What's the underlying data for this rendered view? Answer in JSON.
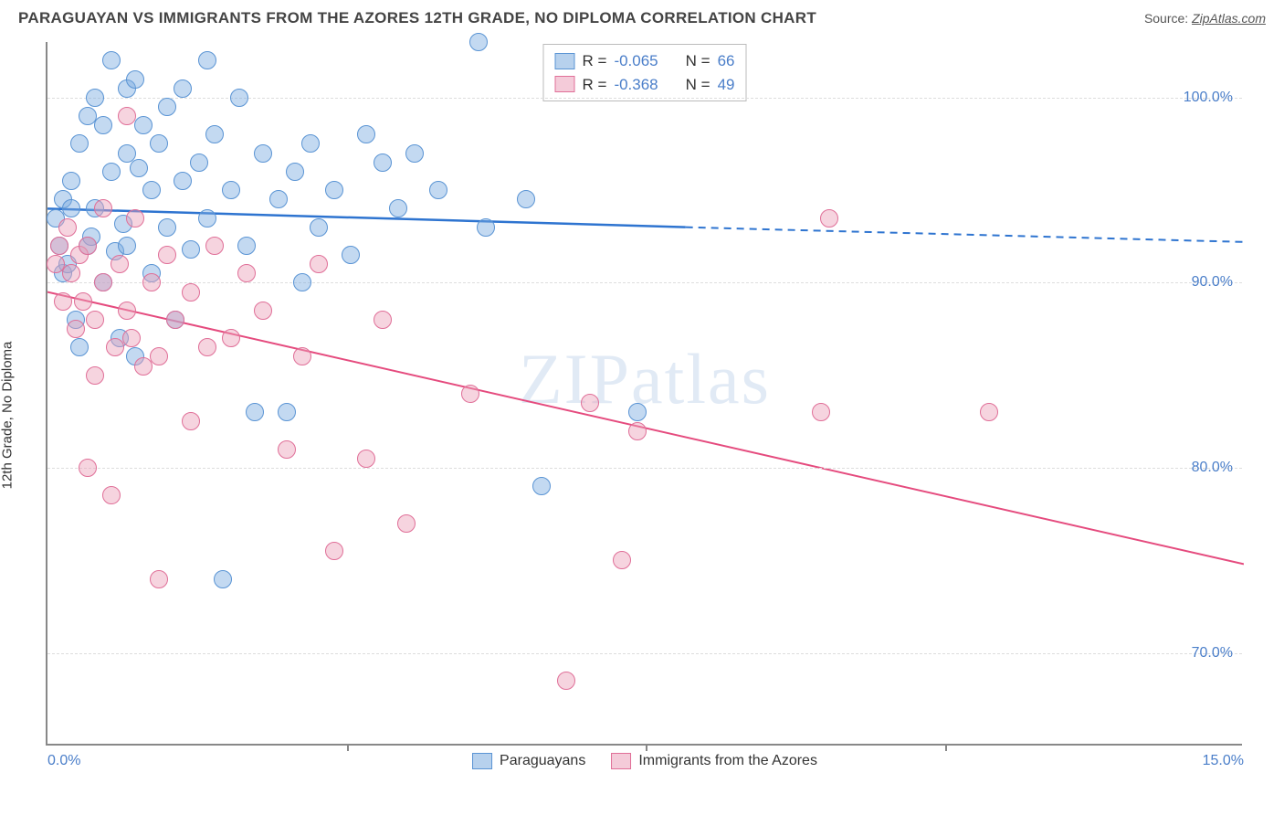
{
  "header": {
    "title": "PARAGUAYAN VS IMMIGRANTS FROM THE AZORES 12TH GRADE, NO DIPLOMA CORRELATION CHART",
    "source_prefix": "Source: ",
    "source_link": "ZipAtlas.com"
  },
  "ylabel": "12th Grade, No Diploma",
  "watermark": "ZIPatlas",
  "chart": {
    "type": "scatter",
    "xlim": [
      0,
      15
    ],
    "ylim": [
      65,
      103
    ],
    "xtick_major": [
      0,
      15
    ],
    "xtick_minor": [
      3.75,
      7.5,
      11.25
    ],
    "xtick_labels": [
      "0.0%",
      "15.0%"
    ],
    "yticks": [
      70,
      80,
      90,
      100
    ],
    "ytick_labels": [
      "70.0%",
      "80.0%",
      "90.0%",
      "100.0%"
    ],
    "grid_color": "#dddddd",
    "axis_color": "#888888",
    "background_color": "#ffffff",
    "tick_label_color": "#4a7ec9",
    "tick_fontsize": 16,
    "series": [
      {
        "name": "Paraguayans",
        "color_fill": "rgba(123,171,223,0.45)",
        "color_stroke": "#5a94d4",
        "marker_size": 20,
        "R": "-0.065",
        "N": "66",
        "trend": {
          "x1": 0,
          "y1": 94.0,
          "x2": 8.0,
          "y2": 93.0,
          "x2_dash": 15,
          "y2_dash": 92.2,
          "color": "#2e74d0",
          "width": 2.5
        },
        "points": [
          [
            0.1,
            93.5
          ],
          [
            0.15,
            92.0
          ],
          [
            0.2,
            90.5
          ],
          [
            0.2,
            94.5
          ],
          [
            0.25,
            91.0
          ],
          [
            0.3,
            94.0
          ],
          [
            0.3,
            95.5
          ],
          [
            0.35,
            88.0
          ],
          [
            0.4,
            86.5
          ],
          [
            0.4,
            97.5
          ],
          [
            0.5,
            92.0
          ],
          [
            0.5,
            99.0
          ],
          [
            0.55,
            92.5
          ],
          [
            0.6,
            100.0
          ],
          [
            0.6,
            94.0
          ],
          [
            0.7,
            90.0
          ],
          [
            0.7,
            98.5
          ],
          [
            0.8,
            102.0
          ],
          [
            0.8,
            96.0
          ],
          [
            0.85,
            91.7
          ],
          [
            0.9,
            87.0
          ],
          [
            1.0,
            100.5
          ],
          [
            1.0,
            97.0
          ],
          [
            1.0,
            92.0
          ],
          [
            1.1,
            86.0
          ],
          [
            1.1,
            101.0
          ],
          [
            1.2,
            98.5
          ],
          [
            1.3,
            95.0
          ],
          [
            1.3,
            90.5
          ],
          [
            1.4,
            97.5
          ],
          [
            1.5,
            93.0
          ],
          [
            1.5,
            99.5
          ],
          [
            1.6,
            88.0
          ],
          [
            1.7,
            95.5
          ],
          [
            1.7,
            100.5
          ],
          [
            1.8,
            91.8
          ],
          [
            1.9,
            96.5
          ],
          [
            2.0,
            102.0
          ],
          [
            2.0,
            93.5
          ],
          [
            2.1,
            98.0
          ],
          [
            2.2,
            74.0
          ],
          [
            2.3,
            95.0
          ],
          [
            2.4,
            100.0
          ],
          [
            2.5,
            92.0
          ],
          [
            2.6,
            83.0
          ],
          [
            2.7,
            97.0
          ],
          [
            2.9,
            94.5
          ],
          [
            3.0,
            83.0
          ],
          [
            3.1,
            96.0
          ],
          [
            3.2,
            90.0
          ],
          [
            3.3,
            97.5
          ],
          [
            3.4,
            93.0
          ],
          [
            3.6,
            95.0
          ],
          [
            3.8,
            91.5
          ],
          [
            4.0,
            98.0
          ],
          [
            4.2,
            96.5
          ],
          [
            4.4,
            94.0
          ],
          [
            4.6,
            97.0
          ],
          [
            4.9,
            95.0
          ],
          [
            5.4,
            103.0
          ],
          [
            5.5,
            93.0
          ],
          [
            6.0,
            94.5
          ],
          [
            6.2,
            79.0
          ],
          [
            7.4,
            83.0
          ],
          [
            1.15,
            96.2
          ],
          [
            0.95,
            93.2
          ]
        ]
      },
      {
        "name": "Immigrants from the Azores",
        "color_fill": "rgba(235,160,185,0.45)",
        "color_stroke": "#e06f98",
        "marker_size": 20,
        "R": "-0.368",
        "N": "49",
        "trend": {
          "x1": 0,
          "y1": 89.5,
          "x2": 15,
          "y2": 74.8,
          "color": "#e54b7e",
          "width": 2
        },
        "points": [
          [
            0.1,
            91.0
          ],
          [
            0.15,
            92.0
          ],
          [
            0.2,
            89.0
          ],
          [
            0.25,
            93.0
          ],
          [
            0.3,
            90.5
          ],
          [
            0.35,
            87.5
          ],
          [
            0.4,
            91.5
          ],
          [
            0.5,
            80.0
          ],
          [
            0.5,
            92.0
          ],
          [
            0.6,
            88.0
          ],
          [
            0.7,
            90.0
          ],
          [
            0.7,
            94.0
          ],
          [
            0.8,
            78.5
          ],
          [
            0.85,
            86.5
          ],
          [
            0.9,
            91.0
          ],
          [
            1.0,
            99.0
          ],
          [
            1.0,
            88.5
          ],
          [
            1.1,
            93.5
          ],
          [
            1.2,
            85.5
          ],
          [
            1.3,
            90.0
          ],
          [
            1.4,
            86.0
          ],
          [
            1.4,
            74.0
          ],
          [
            1.5,
            91.5
          ],
          [
            1.6,
            88.0
          ],
          [
            1.8,
            82.5
          ],
          [
            1.8,
            89.5
          ],
          [
            2.0,
            86.5
          ],
          [
            2.1,
            92.0
          ],
          [
            2.3,
            87.0
          ],
          [
            2.5,
            90.5
          ],
          [
            2.7,
            88.5
          ],
          [
            3.0,
            81.0
          ],
          [
            3.2,
            86.0
          ],
          [
            3.4,
            91.0
          ],
          [
            3.6,
            75.5
          ],
          [
            4.0,
            80.5
          ],
          [
            4.2,
            88.0
          ],
          [
            4.5,
            77.0
          ],
          [
            5.3,
            84.0
          ],
          [
            6.5,
            68.5
          ],
          [
            6.8,
            83.5
          ],
          [
            7.2,
            75.0
          ],
          [
            7.4,
            82.0
          ],
          [
            9.7,
            83.0
          ],
          [
            9.8,
            93.5
          ],
          [
            11.8,
            83.0
          ],
          [
            0.45,
            89.0
          ],
          [
            0.6,
            85.0
          ],
          [
            1.05,
            87.0
          ]
        ]
      }
    ]
  },
  "legend_floating": {
    "rows": [
      {
        "swatch": "blue",
        "r_label": "R = ",
        "r_val": "-0.065",
        "n_label": "N = ",
        "n_val": "66"
      },
      {
        "swatch": "pink",
        "r_label": "R = ",
        "r_val": "-0.368",
        "n_label": "N = ",
        "n_val": "49"
      }
    ]
  },
  "bottom_legend": {
    "items": [
      {
        "swatch": "blue",
        "label": "Paraguayans"
      },
      {
        "swatch": "pink",
        "label": "Immigrants from the Azores"
      }
    ]
  }
}
